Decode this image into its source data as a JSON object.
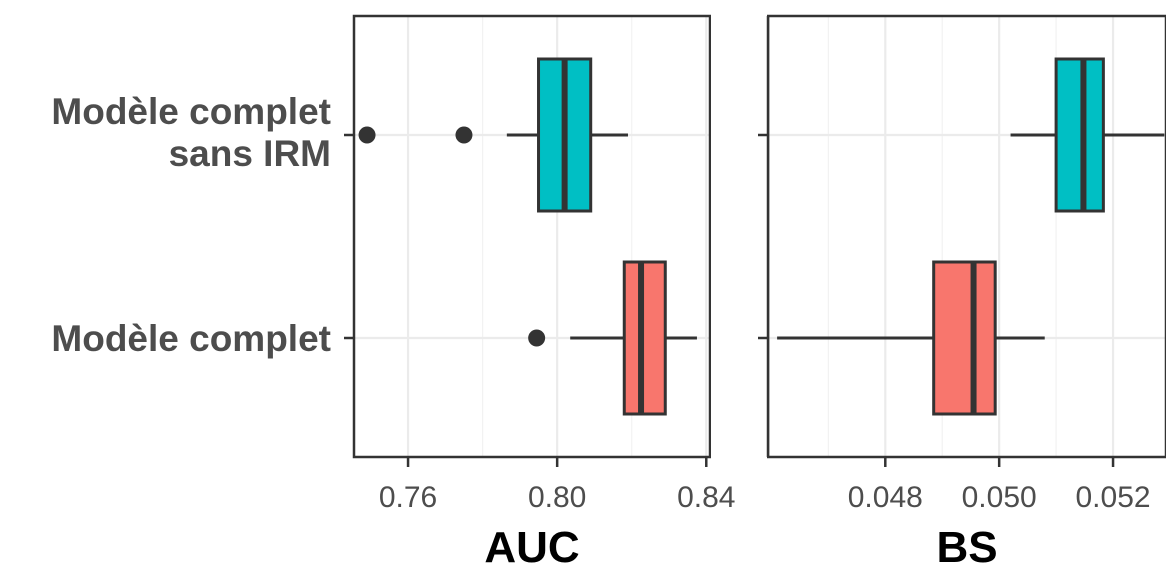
{
  "chart_data": {
    "type": "boxplot",
    "orientation": "horizontal",
    "grid": true,
    "categories": [
      "Modèle complet\nsans IRM",
      "Modèle complet"
    ],
    "panels": [
      {
        "id": "auc",
        "xlabel": "AUC",
        "xlim": [
          0.7455,
          0.841
        ],
        "ticks": [
          0.76,
          0.8,
          0.84
        ],
        "tick_labels": [
          "0.76",
          "0.80",
          "0.84"
        ],
        "minor_ticks": [
          0.78,
          0.82
        ],
        "boxes": [
          {
            "category": "Modèle complet\nsans IRM",
            "color": "#00BFC4",
            "whisker_low": 0.7865,
            "q1": 0.795,
            "median": 0.802,
            "q3": 0.809,
            "whisker_high": 0.819,
            "outliers": [
              0.749,
              0.775
            ]
          },
          {
            "category": "Modèle complet",
            "color": "#F8766D",
            "whisker_low": 0.8035,
            "q1": 0.818,
            "median": 0.8225,
            "q3": 0.829,
            "whisker_high": 0.8375,
            "outliers": [
              0.7945
            ]
          }
        ]
      },
      {
        "id": "bs",
        "xlabel": "BS",
        "xlim": [
          0.04594,
          0.05293
        ],
        "ticks": [
          0.048,
          0.05,
          0.052
        ],
        "tick_labels": [
          "0.048",
          "0.050",
          "0.052"
        ],
        "minor_ticks": [
          0.047,
          0.049,
          0.051
        ],
        "boxes": [
          {
            "category": "Modèle complet\nsans IRM",
            "color": "#00BFC4",
            "whisker_low": 0.0502,
            "q1": 0.051,
            "median": 0.05148,
            "q3": 0.05183,
            "whisker_high": 0.0529,
            "outliers": []
          },
          {
            "category": "Modèle complet",
            "color": "#F8766D",
            "whisker_low": 0.0461,
            "q1": 0.04885,
            "median": 0.04955,
            "q3": 0.04993,
            "whisker_high": 0.0508,
            "outliers": []
          }
        ]
      }
    ]
  }
}
